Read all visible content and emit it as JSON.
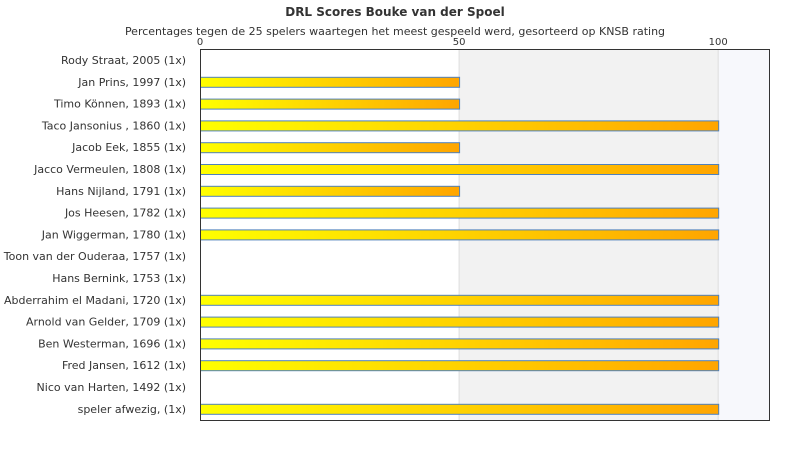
{
  "chart_data": {
    "type": "bar",
    "orientation": "horizontal",
    "title": "DRL Scores Bouke van der Spoel",
    "subtitle": "Percentages tegen de 25 spelers waartegen het meest gespeeld werd, gesorteerd op KNSB rating",
    "xlim": [
      0,
      110
    ],
    "xticks": [
      "0",
      "50",
      "100"
    ],
    "grid": true,
    "categories": [
      "Rody Straat, 2005 (1x)",
      "Jan Prins, 1997 (1x)",
      "Timo Können, 1893 (1x)",
      "Taco Jansonius , 1860 (1x)",
      "Jacob Eek, 1855 (1x)",
      "Jacco Vermeulen, 1808 (1x)",
      "Hans Nijland, 1791 (1x)",
      "Jos Heesen, 1782 (1x)",
      "Jan Wiggerman, 1780 (1x)",
      "Toon van der Ouderaa, 1757 (1x)",
      "Hans Bernink, 1753 (1x)",
      "Abderrahim el Madani, 1720 (1x)",
      "Arnold van Gelder, 1709 (1x)",
      "Ben Westerman, 1696 (1x)",
      "Fred Jansen, 1612 (1x)",
      "Nico van Harten, 1492 (1x)",
      "speler afwezig,  (1x)"
    ],
    "values": [
      0,
      50,
      50,
      100,
      50,
      100,
      50,
      100,
      100,
      0,
      0,
      100,
      100,
      100,
      100,
      0,
      100
    ],
    "colors": {
      "bar_start": "#ffff00",
      "bar_end": "#ffa500",
      "bar_stroke": "#4f81bd",
      "band": "#f2f2f2",
      "band_far": "#f7f8fc",
      "grid": "#dddddd",
      "axis": "#333333"
    }
  }
}
